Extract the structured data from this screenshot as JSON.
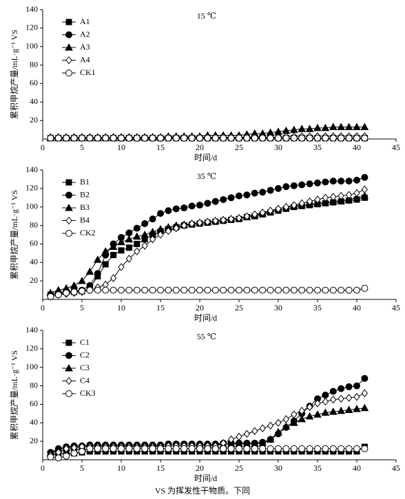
{
  "chart_data": [
    {
      "type": "line",
      "title": "15 ℃",
      "xlabel": "时间/d",
      "ylabel": "累积甲烷产量/mL·g⁻¹ VS",
      "xlim": [
        0,
        45
      ],
      "xticks": [
        0,
        5,
        10,
        15,
        20,
        25,
        30,
        35,
        40,
        45
      ],
      "ylim": [
        0,
        140
      ],
      "yticks": [
        20,
        40,
        60,
        80,
        100,
        120,
        140
      ],
      "legend": "top-left",
      "x": [
        1,
        2,
        3,
        4,
        5,
        6,
        7,
        8,
        9,
        10,
        11,
        12,
        13,
        14,
        15,
        16,
        17,
        18,
        19,
        20,
        21,
        22,
        23,
        24,
        25,
        26,
        27,
        28,
        29,
        30,
        31,
        32,
        33,
        34,
        35,
        36,
        37,
        38,
        39,
        40,
        41
      ],
      "series": [
        {
          "name": "A1",
          "color": "#000000",
          "marker": "square",
          "values": [
            1,
            1,
            1,
            1,
            1,
            1,
            1,
            1,
            1,
            1,
            1,
            1,
            1,
            1,
            1,
            1,
            1,
            1,
            1,
            1,
            1,
            1,
            1,
            1,
            1,
            1,
            1,
            1,
            1,
            1,
            1,
            1,
            1,
            1,
            1,
            1,
            1,
            1,
            1,
            1,
            1
          ]
        },
        {
          "name": "A2",
          "color": "#000000",
          "marker": "circle",
          "values": [
            1,
            1,
            1,
            1,
            1,
            1,
            1,
            1,
            1,
            1,
            1,
            1,
            1,
            1,
            1,
            1,
            1,
            1,
            1,
            1,
            1,
            1,
            1,
            1,
            1,
            1,
            1,
            1,
            1,
            1,
            1,
            1,
            1,
            1,
            1,
            1,
            1,
            1,
            1,
            1,
            1
          ]
        },
        {
          "name": "A3",
          "color": "#000000",
          "marker": "triangle",
          "values": [
            1,
            1,
            1,
            1,
            1,
            1,
            1,
            1,
            1,
            1,
            2,
            2,
            2,
            2,
            2,
            3,
            3,
            3,
            3,
            3,
            4,
            4,
            4,
            4,
            4,
            5,
            6,
            6,
            7,
            8,
            9,
            10,
            11,
            11,
            12,
            12,
            13,
            13,
            13,
            13,
            13
          ]
        },
        {
          "name": "A4",
          "color": "#000000",
          "marker": "diamond",
          "values": [
            2,
            2,
            2,
            2,
            2,
            2,
            2,
            2,
            2,
            2,
            2,
            2,
            2,
            2,
            2,
            2,
            2,
            2,
            2,
            2,
            2,
            2,
            2,
            2,
            2,
            2,
            2,
            2,
            2,
            2,
            3,
            3,
            3,
            3,
            3,
            3,
            3,
            3,
            3,
            3,
            3
          ]
        },
        {
          "name": "CK1",
          "color": "#000000",
          "marker": "open-circle",
          "values": [
            1,
            1,
            1,
            1,
            1,
            1,
            1,
            1,
            1,
            1,
            1,
            1,
            1,
            1,
            1,
            1,
            1,
            1,
            1,
            1,
            1,
            1,
            1,
            1,
            1,
            1,
            1,
            1,
            1,
            1,
            1,
            1,
            1,
            1,
            1,
            1,
            1,
            1,
            1,
            1,
            1
          ]
        }
      ]
    },
    {
      "type": "line",
      "title": "35 ℃",
      "xlabel": "时间/d",
      "ylabel": "累积甲烷产量/mL·g⁻¹ VS",
      "xlim": [
        0,
        45
      ],
      "xticks": [
        0,
        5,
        10,
        15,
        20,
        25,
        30,
        35,
        40,
        45
      ],
      "ylim": [
        0,
        140
      ],
      "yticks": [
        20,
        40,
        60,
        80,
        100,
        120,
        140
      ],
      "legend": "top-left",
      "x": [
        1,
        2,
        3,
        4,
        5,
        6,
        7,
        8,
        9,
        10,
        11,
        12,
        13,
        14,
        15,
        16,
        17,
        18,
        19,
        20,
        21,
        22,
        23,
        24,
        25,
        26,
        27,
        28,
        29,
        30,
        31,
        32,
        33,
        34,
        35,
        36,
        37,
        38,
        39,
        40,
        41
      ],
      "series": [
        {
          "name": "B1",
          "color": "#000000",
          "marker": "square",
          "values": [
            5,
            6,
            8,
            8,
            9,
            12,
            25,
            38,
            48,
            53,
            56,
            60,
            65,
            70,
            73,
            76,
            78,
            80,
            81,
            82,
            83,
            84,
            85,
            86,
            87,
            89,
            90,
            92,
            94,
            96,
            98,
            100,
            101,
            102,
            103,
            104,
            105,
            106,
            107,
            108,
            110
          ]
        },
        {
          "name": "B2",
          "color": "#000000",
          "marker": "circle",
          "values": [
            5,
            7,
            8,
            9,
            10,
            15,
            28,
            48,
            60,
            67,
            72,
            77,
            82,
            87,
            93,
            96,
            98,
            99,
            101,
            102,
            104,
            106,
            108,
            110,
            112,
            113,
            115,
            116,
            118,
            120,
            122,
            123,
            124,
            125,
            126,
            127,
            128,
            128,
            128,
            129,
            132
          ]
        },
        {
          "name": "B3",
          "color": "#000000",
          "marker": "triangle",
          "values": [
            7,
            10,
            12,
            15,
            20,
            30,
            43,
            52,
            57,
            62,
            65,
            68,
            70,
            73,
            76,
            78,
            80,
            81,
            82,
            83,
            84,
            85,
            86,
            87,
            88,
            89,
            91,
            93,
            95,
            98,
            100,
            101,
            102,
            103,
            104,
            105,
            106,
            107,
            108,
            110,
            112
          ]
        },
        {
          "name": "B4",
          "color": "#000000",
          "marker": "diamond",
          "values": [
            3,
            5,
            6,
            7,
            8,
            10,
            13,
            16,
            23,
            35,
            44,
            52,
            58,
            65,
            70,
            74,
            77,
            80,
            82,
            83,
            84,
            85,
            86,
            87,
            88,
            90,
            92,
            94,
            96,
            98,
            100,
            102,
            104,
            106,
            108,
            110,
            111,
            112,
            113,
            115,
            119
          ]
        },
        {
          "name": "CK2",
          "color": "#000000",
          "marker": "open-circle",
          "values": [
            3,
            5,
            7,
            8,
            9,
            10,
            10,
            10,
            10,
            10,
            10,
            10,
            10,
            10,
            10,
            10,
            10,
            10,
            10,
            10,
            10,
            10,
            10,
            10,
            10,
            10,
            10,
            10,
            10,
            10,
            10,
            10,
            10,
            10,
            10,
            10,
            10,
            10,
            10,
            10,
            12
          ]
        }
      ]
    },
    {
      "type": "line",
      "title": "55 ℃",
      "xlabel": "时间/d",
      "ylabel": "累积甲烷产量/mL·g⁻¹ VS",
      "xlim": [
        0,
        45
      ],
      "xticks": [
        0,
        5,
        10,
        15,
        20,
        25,
        30,
        35,
        40,
        45
      ],
      "ylim": [
        0,
        140
      ],
      "yticks": [
        20,
        40,
        60,
        80,
        100,
        120,
        140
      ],
      "legend": "top-left",
      "x": [
        1,
        2,
        3,
        4,
        5,
        6,
        7,
        8,
        9,
        10,
        11,
        12,
        13,
        14,
        15,
        16,
        17,
        18,
        19,
        20,
        21,
        22,
        23,
        24,
        25,
        26,
        27,
        28,
        29,
        30,
        31,
        32,
        33,
        34,
        35,
        36,
        37,
        38,
        39,
        40,
        41
      ],
      "series": [
        {
          "name": "C1",
          "color": "#000000",
          "marker": "square",
          "values": [
            5,
            6,
            7,
            7,
            8,
            9,
            9,
            9,
            9,
            9,
            9,
            9,
            9,
            9,
            9,
            9,
            9,
            9,
            9,
            9,
            9,
            9,
            9,
            9,
            9,
            9,
            9,
            9,
            9,
            9,
            9,
            9,
            9,
            9,
            9,
            9,
            9,
            9,
            9,
            9,
            14
          ]
        },
        {
          "name": "C2",
          "color": "#000000",
          "marker": "circle",
          "values": [
            8,
            12,
            14,
            15,
            15,
            16,
            16,
            16,
            16,
            16,
            16,
            16,
            16,
            16,
            16,
            17,
            17,
            17,
            17,
            17,
            17,
            17,
            18,
            18,
            18,
            18,
            18,
            19,
            22,
            28,
            35,
            42,
            50,
            58,
            66,
            70,
            74,
            77,
            79,
            80,
            88
          ]
        },
        {
          "name": "C3",
          "color": "#000000",
          "marker": "triangle",
          "values": [
            7,
            11,
            13,
            14,
            14,
            15,
            15,
            15,
            15,
            15,
            15,
            15,
            15,
            15,
            15,
            15,
            15,
            15,
            15,
            16,
            16,
            16,
            16,
            17,
            17,
            17,
            17,
            18,
            22,
            30,
            36,
            40,
            44,
            47,
            49,
            51,
            52,
            53,
            54,
            55,
            56
          ]
        },
        {
          "name": "C4",
          "color": "#000000",
          "marker": "diamond",
          "values": [
            5,
            8,
            12,
            13,
            14,
            14,
            14,
            14,
            14,
            14,
            14,
            14,
            14,
            14,
            14,
            15,
            15,
            15,
            15,
            15,
            15,
            15,
            18,
            22,
            25,
            28,
            31,
            34,
            37,
            40,
            44,
            49,
            53,
            57,
            61,
            63,
            65,
            66,
            67,
            68,
            72
          ]
        },
        {
          "name": "CK3",
          "color": "#000000",
          "marker": "open-circle",
          "values": [
            3,
            2,
            4,
            7,
            9,
            12,
            12,
            12,
            12,
            12,
            12,
            12,
            12,
            12,
            12,
            12,
            12,
            12,
            12,
            12,
            12,
            12,
            12,
            12,
            12,
            12,
            12,
            12,
            12,
            12,
            12,
            12,
            12,
            12,
            12,
            12,
            12,
            12,
            12,
            12,
            12
          ]
        }
      ]
    }
  ],
  "footnote": "VS 为挥发性干物质。下同"
}
